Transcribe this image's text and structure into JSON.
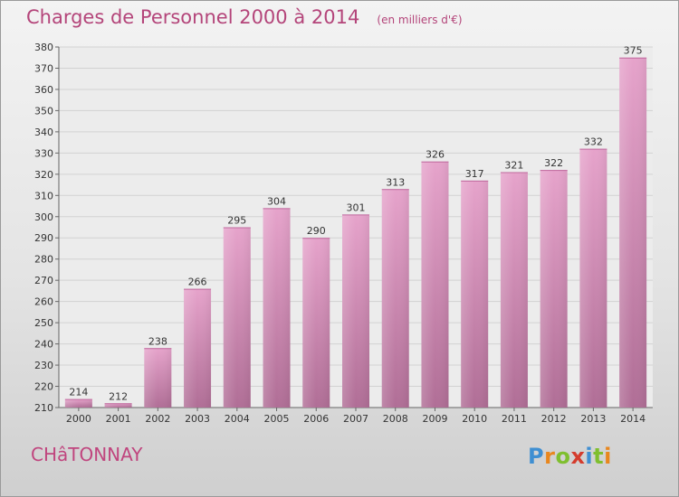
{
  "header": {
    "title": "Charges de Personnel 2000 à 2014",
    "subtitle": "(en milliers d'€)"
  },
  "footer": {
    "commune": "CHâTONNAY",
    "logo_letters": [
      {
        "ch": "P",
        "color": "#3f8fd2"
      },
      {
        "ch": "r",
        "color": "#e8871e"
      },
      {
        "ch": "o",
        "color": "#7fbf2f"
      },
      {
        "ch": "x",
        "color": "#d43c2d"
      },
      {
        "ch": "i",
        "color": "#3f8fd2"
      },
      {
        "ch": "t",
        "color": "#7fbf2f"
      },
      {
        "ch": "i",
        "color": "#e8871e"
      }
    ]
  },
  "chart_data": {
    "type": "bar",
    "title": "Charges de Personnel 2000 à 2014",
    "subtitle": "(en milliers d'€)",
    "categories": [
      "2000",
      "2001",
      "2002",
      "2003",
      "2004",
      "2005",
      "2006",
      "2007",
      "2008",
      "2009",
      "2010",
      "2011",
      "2012",
      "2013",
      "2014"
    ],
    "values": [
      214,
      212,
      238,
      266,
      295,
      304,
      290,
      301,
      313,
      326,
      317,
      321,
      322,
      332,
      375
    ],
    "ylim": [
      210,
      380
    ],
    "yticks": [
      210,
      220,
      230,
      240,
      250,
      260,
      270,
      280,
      290,
      300,
      310,
      320,
      330,
      340,
      350,
      360,
      370,
      380
    ],
    "grid": true,
    "legend": "none",
    "bar_color": "#d682b3"
  }
}
